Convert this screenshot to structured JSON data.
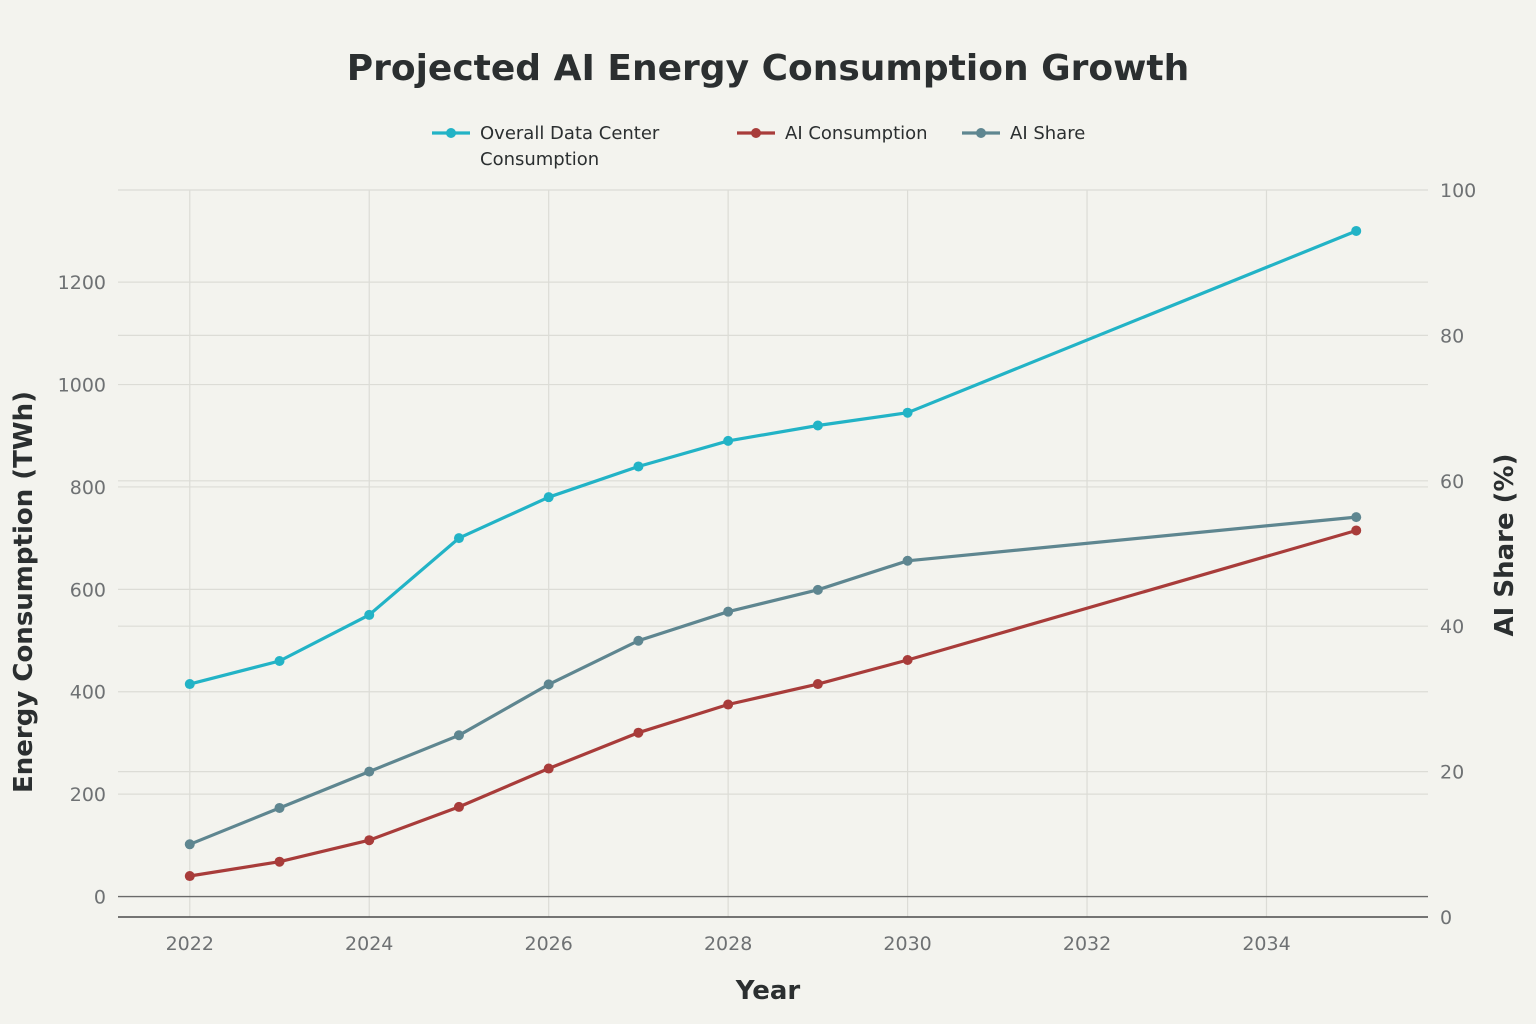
{
  "chart_data": {
    "type": "line",
    "title": "Projected AI Energy Consumption Growth",
    "xlabel": "Year",
    "ylabel": "Energy Consumption (TWh)",
    "y2label": "AI Share  (%)",
    "xlim": [
      2021.2,
      2035.8
    ],
    "ylim": [
      -40,
      1380
    ],
    "y2lim": [
      0,
      100
    ],
    "xticks": [
      2022,
      2024,
      2026,
      2028,
      2030,
      2032,
      2034
    ],
    "xtick_labels": [
      "2022",
      "2024",
      "2026",
      "2028",
      "2030",
      "2032",
      "2034"
    ],
    "yticks": [
      0,
      200,
      400,
      600,
      800,
      1000,
      1200
    ],
    "ytick_labels": [
      "0",
      "200",
      "400",
      "600",
      "800",
      "1000",
      "1200"
    ],
    "y2ticks": [
      0,
      20,
      40,
      60,
      80,
      100
    ],
    "y2tick_labels": [
      "0",
      "20",
      "40",
      "60",
      "80",
      "100"
    ],
    "grid": true,
    "legend_position": "top-center",
    "x": [
      2022,
      2023,
      2024,
      2025,
      2026,
      2027,
      2028,
      2029,
      2030,
      2035
    ],
    "series": [
      {
        "name": "Overall Data Center Consumption",
        "axis": "left",
        "color": "#22b3c6",
        "values": [
          415,
          460,
          550,
          700,
          780,
          840,
          890,
          920,
          945,
          1300
        ]
      },
      {
        "name": "AI Consumption",
        "axis": "left",
        "color": "#a83c3a",
        "values": [
          40,
          68,
          110,
          175,
          250,
          320,
          375,
          415,
          462,
          715
        ]
      },
      {
        "name": "AI Share",
        "axis": "right",
        "color": "#5e8690",
        "values": [
          10,
          15,
          20,
          25,
          32,
          38,
          42,
          45,
          49,
          55
        ]
      }
    ]
  }
}
